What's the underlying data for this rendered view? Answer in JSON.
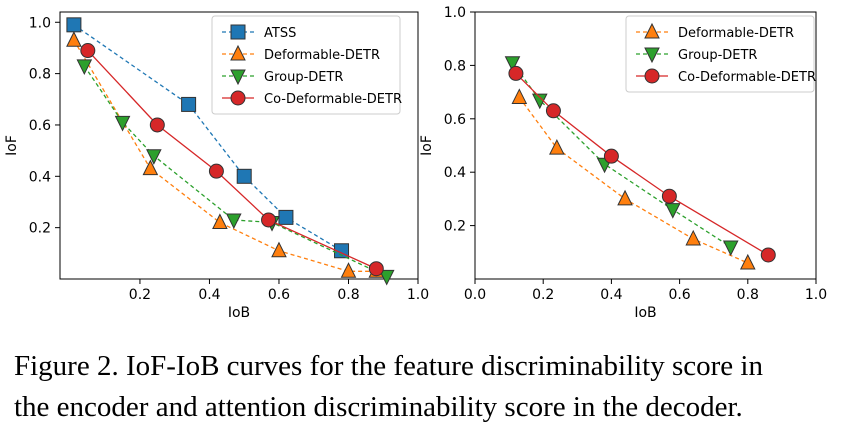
{
  "chart_data": [
    {
      "type": "line",
      "xlabel": "IoB",
      "ylabel": "IoF",
      "xlim": [
        -0.03,
        1.0
      ],
      "ylim": [
        0.0,
        1.04
      ],
      "xticks": [
        "0.2",
        "0.4",
        "0.6",
        "0.8",
        "1.0"
      ],
      "yticks": [
        "0.2",
        "0.4",
        "0.6",
        "0.8",
        "1.0"
      ],
      "grid": false,
      "legend": "top-right",
      "series": [
        {
          "name": "ATSS",
          "color": "#1f77b4",
          "marker": "square",
          "dash": true,
          "x": [
            0.01,
            0.34,
            0.5,
            0.62,
            0.78
          ],
          "y": [
            0.99,
            0.68,
            0.4,
            0.24,
            0.11
          ]
        },
        {
          "name": "Deformable-DETR",
          "color": "#ff7f0e",
          "marker": "triangle-up",
          "dash": true,
          "x": [
            0.01,
            0.23,
            0.43,
            0.6,
            0.8,
            0.88
          ],
          "y": [
            0.93,
            0.43,
            0.22,
            0.11,
            0.03,
            0.03
          ]
        },
        {
          "name": "Group-DETR",
          "color": "#2ca02c",
          "marker": "triangle-down",
          "dash": true,
          "x": [
            0.04,
            0.15,
            0.24,
            0.47,
            0.58,
            0.91
          ],
          "y": [
            0.83,
            0.61,
            0.48,
            0.23,
            0.22,
            0.01
          ]
        },
        {
          "name": "Co-Deformable-DETR",
          "color": "#d62728",
          "marker": "circle",
          "dash": false,
          "x": [
            0.05,
            0.25,
            0.42,
            0.57,
            0.88
          ],
          "y": [
            0.89,
            0.6,
            0.42,
            0.23,
            0.04
          ]
        }
      ]
    },
    {
      "type": "line",
      "xlabel": "IoB",
      "ylabel": "IoF",
      "xlim": [
        0.0,
        1.0
      ],
      "ylim": [
        0.0,
        1.0
      ],
      "xticks": [
        "0.0",
        "0.2",
        "0.4",
        "0.6",
        "0.8",
        "1.0"
      ],
      "yticks": [
        "0.2",
        "0.4",
        "0.6",
        "0.8",
        "1.0"
      ],
      "grid": false,
      "legend": "top-right",
      "series": [
        {
          "name": "Deformable-DETR",
          "color": "#ff7f0e",
          "marker": "triangle-up",
          "dash": true,
          "x": [
            0.13,
            0.24,
            0.44,
            0.64,
            0.8
          ],
          "y": [
            0.68,
            0.49,
            0.3,
            0.15,
            0.06
          ]
        },
        {
          "name": "Group-DETR",
          "color": "#2ca02c",
          "marker": "triangle-down",
          "dash": true,
          "x": [
            0.11,
            0.19,
            0.38,
            0.58,
            0.75
          ],
          "y": [
            0.81,
            0.67,
            0.43,
            0.26,
            0.12
          ]
        },
        {
          "name": "Co-Deformable-DETR",
          "color": "#d62728",
          "marker": "circle",
          "dash": false,
          "x": [
            0.12,
            0.23,
            0.4,
            0.57,
            0.86
          ],
          "y": [
            0.77,
            0.63,
            0.46,
            0.31,
            0.09
          ]
        }
      ]
    }
  ],
  "caption": {
    "line1": "Figure 2.  IoF-IoB curves for the feature discriminability score in",
    "line2": "the encoder and attention discriminability score in the decoder."
  }
}
